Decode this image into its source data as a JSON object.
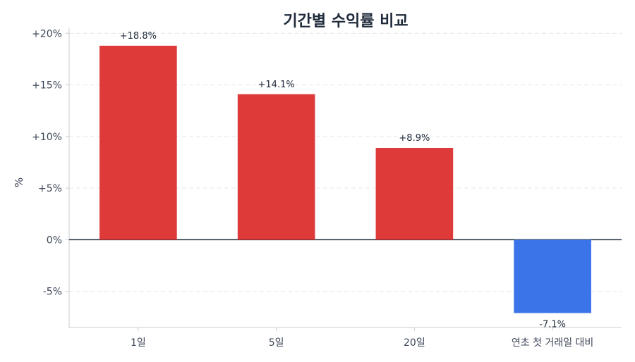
{
  "chart_data": {
    "type": "bar",
    "title": "기간별 수익률 비교",
    "ylabel": "%",
    "xlabel": "",
    "categories": [
      "1일",
      "5일",
      "20일",
      "연초 첫 거래일 대비"
    ],
    "values": [
      18.8,
      14.1,
      8.9,
      -7.1
    ],
    "data_labels": [
      "+18.8%",
      "+14.1%",
      "+8.9%",
      "-7.1%"
    ],
    "ylim": [
      -8.5,
      20.5
    ],
    "yticks": [
      20,
      15,
      10,
      5,
      0,
      -5
    ],
    "ytick_labels": [
      "+20%",
      "+15%",
      "+10%",
      "+5%",
      "0%",
      "-5%"
    ],
    "grid": true,
    "colors": {
      "positive": "#df3a3a",
      "negative": "#3b73e8",
      "zero_line": "#1f2a3a",
      "grid": "#e3e6ea",
      "axis": "#c8ccd2"
    }
  }
}
